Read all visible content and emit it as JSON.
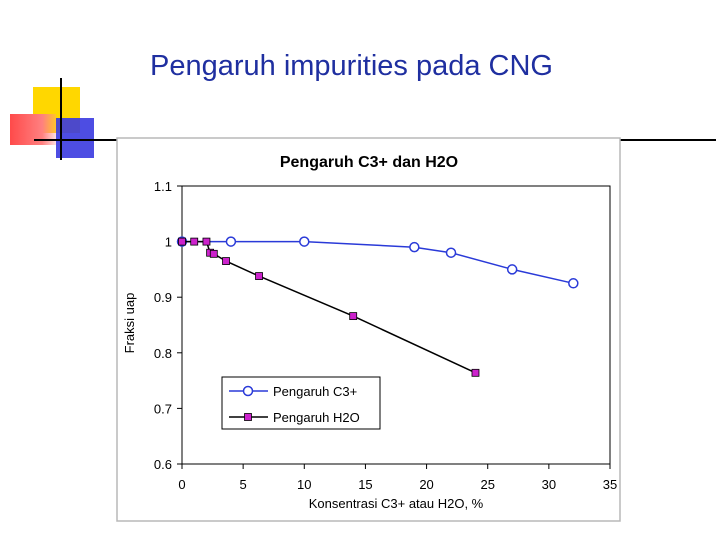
{
  "slide": {
    "title": "Pengaruh impurities pada CNG"
  },
  "colors": {
    "title": "#1f2fa0",
    "deco_yellow": "#ffd700",
    "deco_red": "#ff5a5a",
    "deco_blue": "#3a3ae0",
    "series_c3": "#2a3ad8",
    "series_h2o_line": "#000000",
    "series_h2o_marker": "#cc22cc"
  },
  "chart_data": {
    "type": "line",
    "title": "Pengaruh C3+ dan H2O",
    "xlabel": "Konsentrasi C3+ atau H2O, %",
    "ylabel": "Fraksi uap",
    "xlim": [
      0,
      35
    ],
    "ylim": [
      0.6,
      1.1
    ],
    "x_ticks": [
      "0",
      "5",
      "10",
      "15",
      "20",
      "25",
      "30",
      "35"
    ],
    "y_ticks": [
      "0.6",
      "0.7",
      "0.8",
      "0.9",
      "1",
      "1.1"
    ],
    "grid": false,
    "legend_position": "bottom-left",
    "series": [
      {
        "name": "Pengaruh C3+",
        "marker": "open-circle",
        "x": [
          0,
          4,
          10,
          19,
          22,
          27,
          32
        ],
        "y": [
          1.0,
          1.0,
          1.0,
          0.99,
          0.98,
          0.95,
          0.925
        ]
      },
      {
        "name": "Pengaruh H2O",
        "marker": "filled-square",
        "x": [
          0,
          1,
          2,
          2.3,
          2.6,
          3.6,
          6.3,
          14,
          24
        ],
        "y": [
          1.0,
          1.0,
          1.0,
          0.98,
          0.978,
          0.965,
          0.938,
          0.866,
          0.764
        ]
      }
    ]
  }
}
